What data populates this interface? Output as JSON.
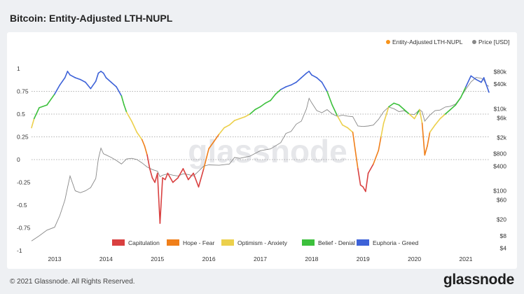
{
  "header": {
    "title": "Bitcoin: Entity-Adjusted LTH-NUPL"
  },
  "footer": {
    "copyright": "© 2021 Glassnode. All Rights Reserved.",
    "logo": "glassnode"
  },
  "watermark": "glassnode",
  "chart_data": {
    "type": "line",
    "title": "Bitcoin: Entity-Adjusted LTH-NUPL",
    "x_ticks": [
      "2013",
      "2014",
      "2015",
      "2016",
      "2017",
      "2018",
      "2019",
      "2020",
      "2021"
    ],
    "x_range": [
      2012.55,
      2021.45
    ],
    "y_left": {
      "ticks": [
        "1",
        "0.75",
        "0.5",
        "0.25",
        "0",
        "-0.25",
        "-0.5",
        "-0.75",
        "-1"
      ],
      "values": [
        1,
        0.75,
        0.5,
        0.25,
        0,
        -0.25,
        -0.5,
        -0.75,
        -1
      ],
      "range": [
        -1,
        1
      ],
      "dotted_lines": [
        0.75,
        0.5,
        0.25,
        0
      ]
    },
    "y_right": {
      "ticks": [
        "$80k",
        "$40k",
        "$10k",
        "$6k",
        "$2k",
        "$800",
        "$400",
        "$100",
        "$60",
        "$20",
        "$8",
        "$4"
      ],
      "values": [
        80000,
        40000,
        10000,
        6000,
        2000,
        800,
        400,
        100,
        60,
        20,
        8,
        4
      ],
      "scale": "log",
      "range": [
        3.5,
        95000
      ]
    },
    "legend_top": [
      {
        "name": "Entity-Adjusted LTH-NUPL",
        "color": "#f7931a"
      },
      {
        "name": "Price [USD]",
        "color": "#888888"
      }
    ],
    "zones": [
      {
        "name": "Capitulation",
        "color": "#d94040",
        "max": 0
      },
      {
        "name": "Hope - Fear",
        "color": "#f07f1a",
        "max": 0.25
      },
      {
        "name": "Optimism - Anxiety",
        "color": "#ecd04c",
        "max": 0.5
      },
      {
        "name": "Belief - Denial",
        "color": "#3cc03c",
        "max": 0.75
      },
      {
        "name": "Euphoria - Greed",
        "color": "#3d62d8",
        "max": 2
      }
    ],
    "series": [
      {
        "name": "Entity-Adjusted LTH-NUPL",
        "x": [
          2012.55,
          2012.6,
          2012.7,
          2012.85,
          2013.0,
          2013.1,
          2013.2,
          2013.25,
          2013.3,
          2013.4,
          2013.5,
          2013.6,
          2013.7,
          2013.8,
          2013.85,
          2013.9,
          2013.95,
          2014.0,
          2014.1,
          2014.2,
          2014.3,
          2014.35,
          2014.4,
          2014.5,
          2014.6,
          2014.7,
          2014.75,
          2014.8,
          2014.85,
          2014.9,
          2014.95,
          2015.0,
          2015.05,
          2015.1,
          2015.15,
          2015.2,
          2015.3,
          2015.4,
          2015.5,
          2015.6,
          2015.7,
          2015.8,
          2015.9,
          2016.0,
          2016.1,
          2016.2,
          2016.3,
          2016.4,
          2016.5,
          2016.6,
          2016.7,
          2016.8,
          2016.9,
          2017.0,
          2017.1,
          2017.2,
          2017.3,
          2017.4,
          2017.5,
          2017.6,
          2017.7,
          2017.8,
          2017.9,
          2017.95,
          2018.0,
          2018.1,
          2018.2,
          2018.3,
          2018.4,
          2018.5,
          2018.6,
          2018.7,
          2018.8,
          2018.85,
          2018.9,
          2018.95,
          2019.0,
          2019.05,
          2019.1,
          2019.2,
          2019.3,
          2019.35,
          2019.4,
          2019.5,
          2019.6,
          2019.7,
          2019.8,
          2019.9,
          2020.0,
          2020.05,
          2020.1,
          2020.15,
          2020.2,
          2020.25,
          2020.3,
          2020.4,
          2020.5,
          2020.6,
          2020.7,
          2020.8,
          2020.9,
          2021.0,
          2021.1,
          2021.2,
          2021.3,
          2021.35,
          2021.4,
          2021.45
        ],
        "values": [
          0.35,
          0.45,
          0.57,
          0.6,
          0.72,
          0.82,
          0.9,
          0.97,
          0.93,
          0.9,
          0.88,
          0.85,
          0.78,
          0.86,
          0.95,
          0.97,
          0.95,
          0.9,
          0.85,
          0.8,
          0.7,
          0.6,
          0.52,
          0.42,
          0.3,
          0.22,
          0.15,
          0.05,
          -0.1,
          -0.2,
          -0.25,
          -0.15,
          -0.7,
          -0.2,
          -0.22,
          -0.15,
          -0.25,
          -0.2,
          -0.1,
          -0.22,
          -0.15,
          -0.3,
          -0.1,
          0.12,
          0.2,
          0.28,
          0.35,
          0.38,
          0.43,
          0.45,
          0.47,
          0.5,
          0.55,
          0.58,
          0.62,
          0.65,
          0.72,
          0.77,
          0.8,
          0.82,
          0.85,
          0.9,
          0.95,
          0.97,
          0.93,
          0.9,
          0.85,
          0.75,
          0.6,
          0.48,
          0.38,
          0.35,
          0.3,
          0.1,
          -0.1,
          -0.28,
          -0.3,
          -0.35,
          -0.15,
          -0.05,
          0.1,
          0.25,
          0.4,
          0.58,
          0.62,
          0.6,
          0.55,
          0.5,
          0.45,
          0.5,
          0.55,
          0.4,
          0.05,
          0.15,
          0.3,
          0.38,
          0.45,
          0.5,
          0.55,
          0.6,
          0.68,
          0.8,
          0.92,
          0.88,
          0.85,
          0.9,
          0.82,
          0.74
        ]
      },
      {
        "name": "Price [USD]",
        "color": "#888888",
        "x": [
          2012.55,
          2012.7,
          2012.85,
          2013.0,
          2013.1,
          2013.2,
          2013.25,
          2013.3,
          2013.4,
          2013.5,
          2013.6,
          2013.7,
          2013.8,
          2013.85,
          2013.9,
          2013.95,
          2014.0,
          2014.1,
          2014.2,
          2014.3,
          2014.4,
          2014.5,
          2014.6,
          2014.7,
          2014.8,
          2014.9,
          2015.0,
          2015.05,
          2015.1,
          2015.2,
          2015.3,
          2015.4,
          2015.5,
          2015.6,
          2015.7,
          2015.8,
          2015.9,
          2016.0,
          2016.2,
          2016.4,
          2016.5,
          2016.6,
          2016.8,
          2017.0,
          2017.2,
          2017.4,
          2017.5,
          2017.6,
          2017.7,
          2017.8,
          2017.9,
          2017.95,
          2018.0,
          2018.1,
          2018.2,
          2018.3,
          2018.4,
          2018.5,
          2018.6,
          2018.7,
          2018.8,
          2018.9,
          2019.0,
          2019.1,
          2019.2,
          2019.3,
          2019.4,
          2019.5,
          2019.6,
          2019.7,
          2019.8,
          2019.9,
          2020.0,
          2020.1,
          2020.15,
          2020.2,
          2020.3,
          2020.4,
          2020.5,
          2020.6,
          2020.7,
          2020.8,
          2020.9,
          2021.0,
          2021.1,
          2021.2,
          2021.3,
          2021.35,
          2021.4,
          2021.45
        ],
        "values": [
          6,
          8,
          11,
          13,
          25,
          60,
          120,
          230,
          100,
          90,
          100,
          120,
          200,
          600,
          1100,
          800,
          750,
          650,
          550,
          450,
          600,
          620,
          580,
          480,
          380,
          330,
          300,
          220,
          240,
          260,
          240,
          230,
          260,
          250,
          230,
          300,
          400,
          430,
          420,
          450,
          650,
          620,
          700,
          950,
          1050,
          1500,
          2500,
          2800,
          4200,
          5000,
          10000,
          18000,
          14000,
          9000,
          8000,
          9500,
          7500,
          6500,
          7000,
          6600,
          6400,
          3800,
          3700,
          3800,
          4000,
          5500,
          8500,
          11000,
          10000,
          8500,
          9000,
          7400,
          7200,
          9500,
          8500,
          5000,
          7000,
          9000,
          9300,
          11000,
          11500,
          13000,
          19000,
          30000,
          45000,
          58000,
          55000,
          50000,
          38000,
          35000
        ]
      }
    ]
  }
}
